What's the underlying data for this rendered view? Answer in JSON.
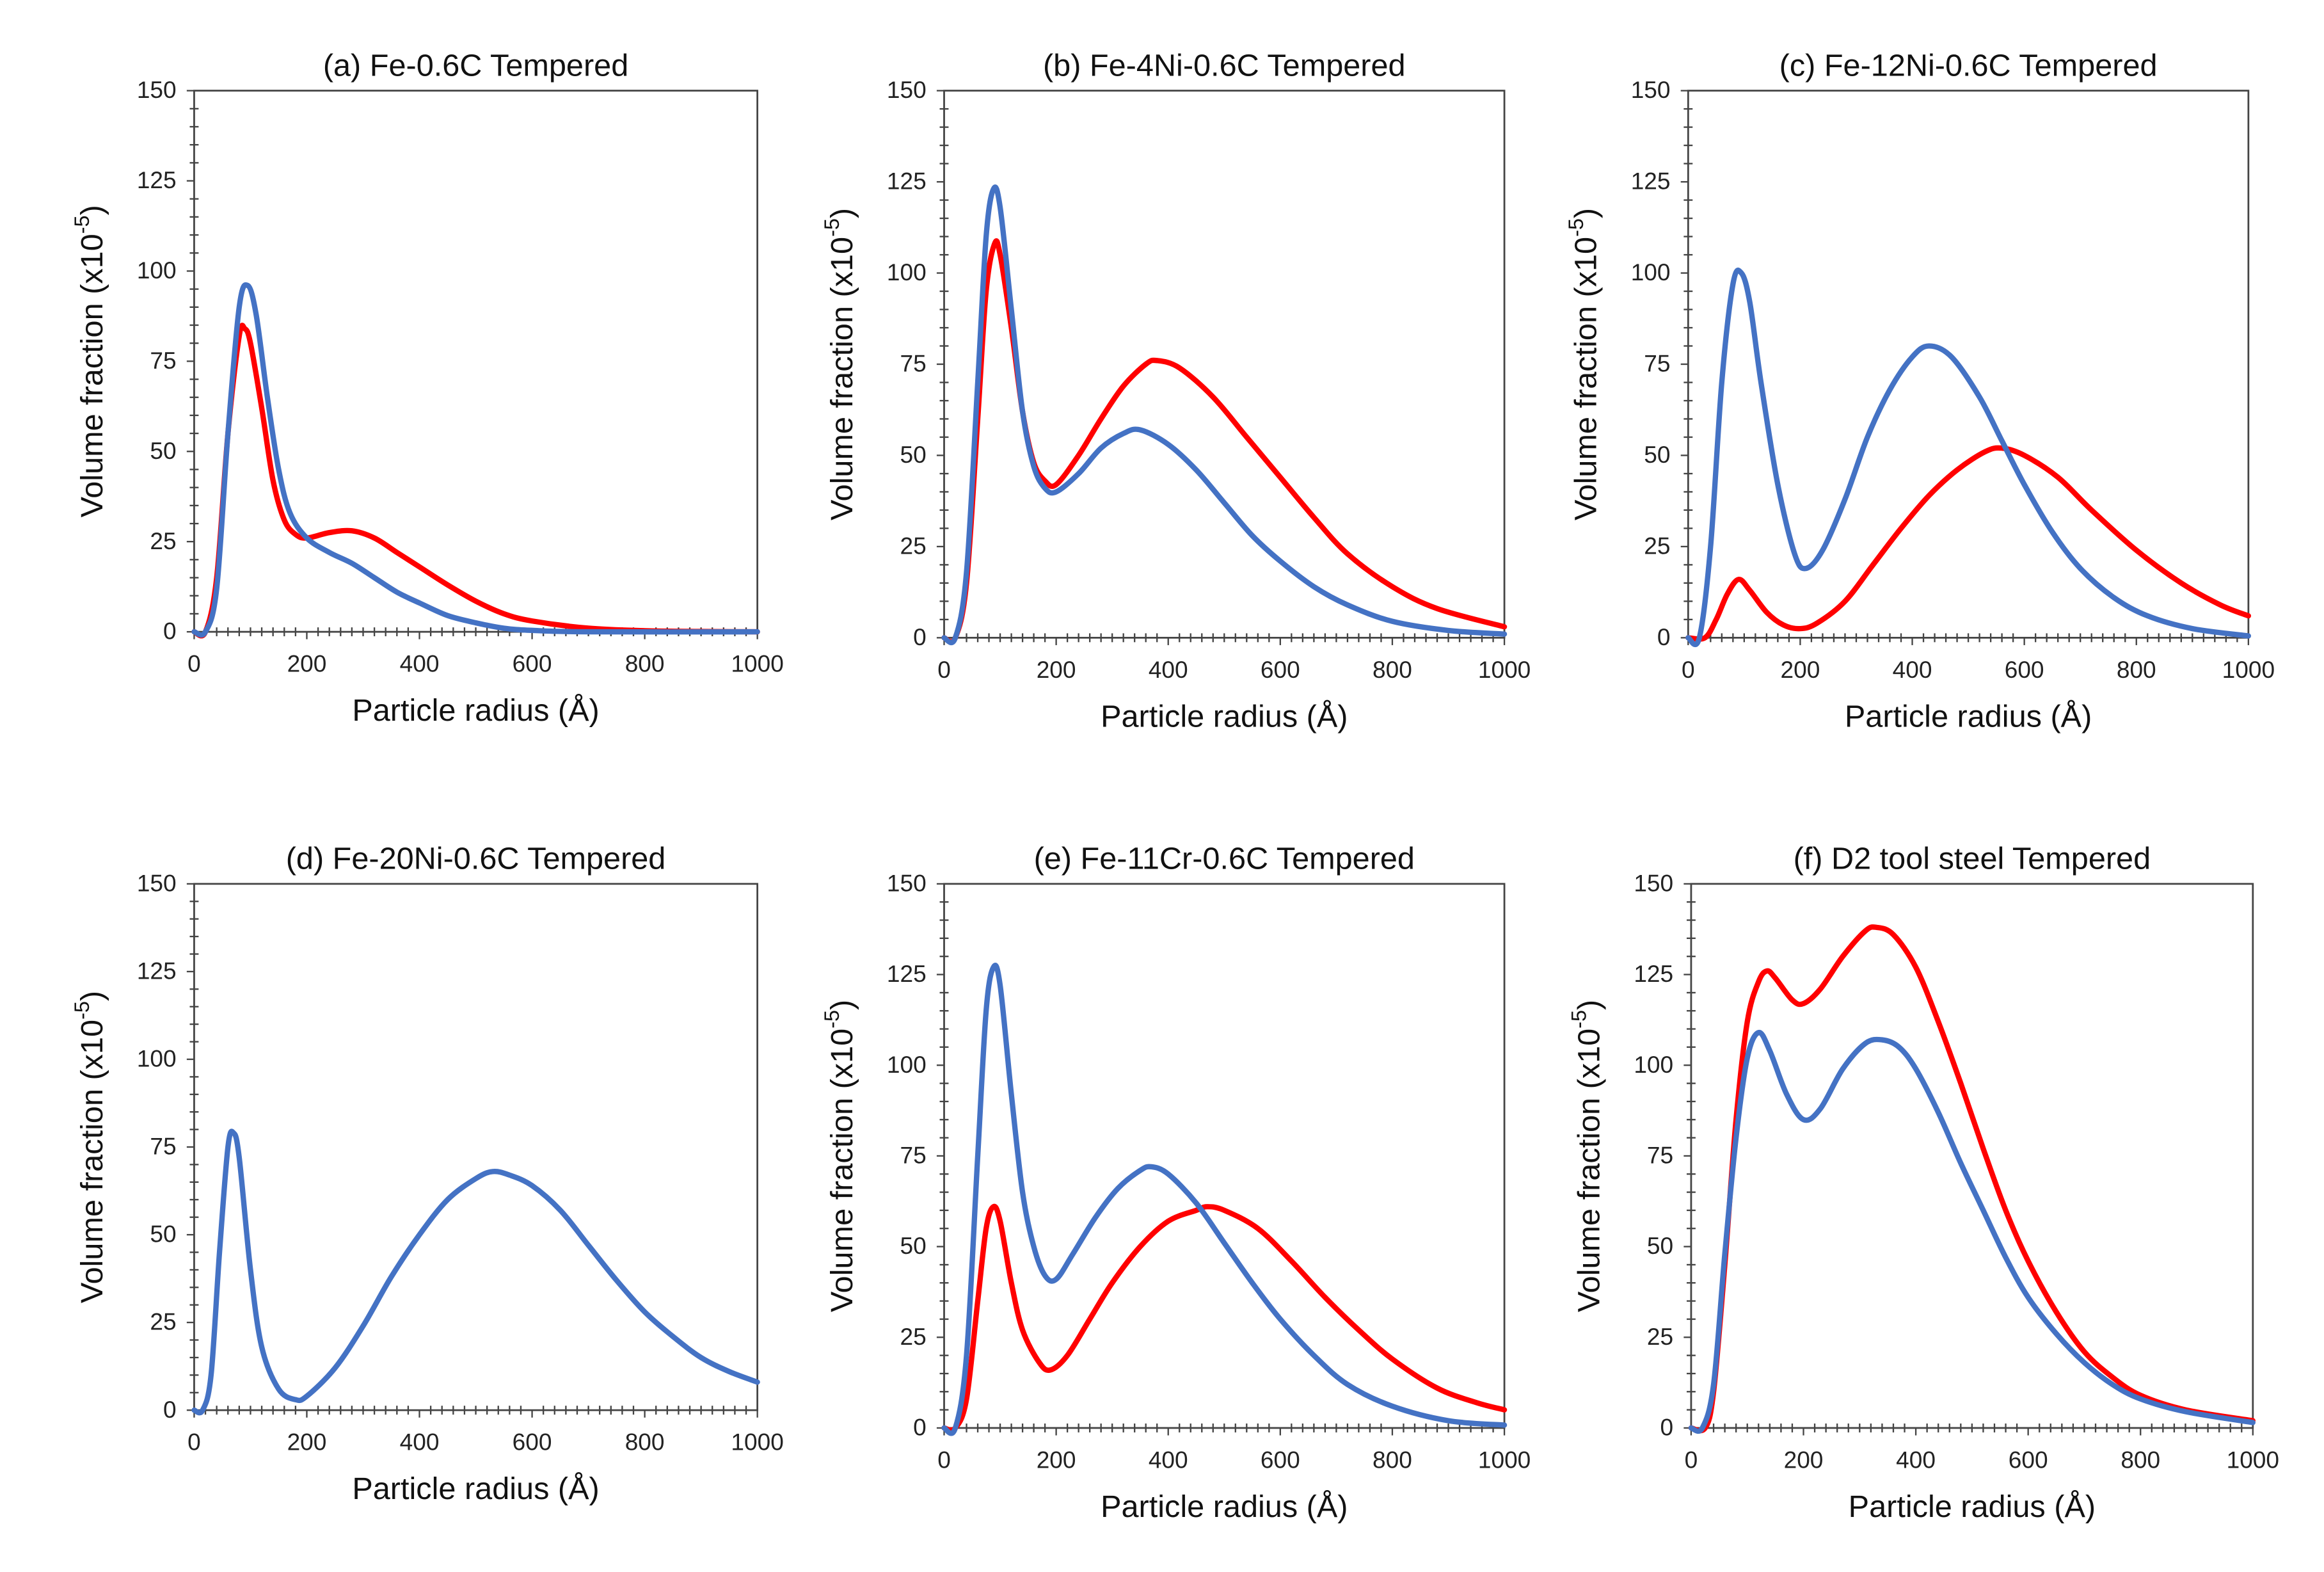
{
  "chart_data": [
    {
      "type": "line",
      "title": "(a) Fe-0.6C Tempered",
      "xlabel": "Particle radius (Å)",
      "ylabel": {
        "prefix": "Volume fraction (x10",
        "sup": "-5",
        "suffix": ")"
      },
      "xlim": [
        0,
        1000
      ],
      "ylim": [
        0,
        150
      ],
      "xticks": [
        "0",
        "200",
        "400",
        "600",
        "800",
        "1000"
      ],
      "yticks": [
        "0",
        "25",
        "50",
        "75",
        "100",
        "125",
        "150"
      ],
      "series": [
        {
          "color": "#ff0000",
          "x": [
            0,
            20,
            40,
            60,
            80,
            90,
            100,
            120,
            140,
            160,
            180,
            200,
            240,
            280,
            320,
            360,
            400,
            450,
            500,
            550,
            600,
            700,
            800,
            900,
            1000
          ],
          "y": [
            0,
            0,
            15,
            55,
            82,
            84,
            80,
            62,
            42,
            31,
            27,
            26,
            27.5,
            28,
            26,
            22,
            18,
            13,
            8.5,
            5,
            3,
            1,
            0.3,
            0.1,
            0
          ]
        },
        {
          "color": "#4472c4",
          "x": [
            0,
            20,
            40,
            60,
            80,
            95,
            110,
            130,
            150,
            170,
            200,
            240,
            280,
            320,
            360,
            400,
            450,
            500,
            550,
            600,
            700,
            1000
          ],
          "y": [
            0,
            0,
            12,
            55,
            90,
            96,
            88,
            65,
            45,
            33,
            26,
            22,
            19,
            15,
            11,
            8,
            4.5,
            2.5,
            1,
            0.4,
            0,
            0
          ]
        }
      ]
    },
    {
      "type": "line",
      "title": "(b) Fe-4Ni-0.6C Tempered",
      "xlabel": "Particle radius (Å)",
      "ylabel": {
        "prefix": "Volume fraction (x10",
        "sup": "-5",
        "suffix": ")"
      },
      "xlim": [
        0,
        1000
      ],
      "ylim": [
        0,
        150
      ],
      "xticks": [
        "0",
        "200",
        "400",
        "600",
        "800",
        "1000"
      ],
      "yticks": [
        "0",
        "25",
        "50",
        "75",
        "100",
        "125",
        "150"
      ],
      "series": [
        {
          "color": "#ff0000",
          "x": [
            0,
            20,
            40,
            60,
            75,
            90,
            100,
            120,
            140,
            160,
            180,
            200,
            240,
            280,
            320,
            360,
            380,
            420,
            480,
            540,
            600,
            660,
            720,
            800,
            880,
            1000
          ],
          "y": [
            0,
            0,
            15,
            60,
            95,
            108,
            105,
            85,
            62,
            48,
            43,
            42,
            50,
            60,
            69,
            75,
            76,
            74,
            66,
            55,
            44,
            33,
            23,
            14,
            8,
            3
          ]
        },
        {
          "color": "#4472c4",
          "x": [
            0,
            20,
            40,
            60,
            75,
            88,
            100,
            120,
            140,
            160,
            180,
            200,
            240,
            280,
            320,
            350,
            400,
            450,
            500,
            550,
            600,
            660,
            720,
            800,
            900,
            1000
          ],
          "y": [
            0,
            0,
            18,
            70,
            110,
            123,
            118,
            90,
            62,
            47,
            41,
            40,
            45,
            52,
            56,
            57,
            53,
            46,
            37,
            28,
            21,
            14,
            9,
            4.5,
            2,
            1
          ]
        }
      ]
    },
    {
      "type": "line",
      "title": "(c) Fe-12Ni-0.6C Tempered",
      "xlabel": "Particle radius (Å)",
      "ylabel": {
        "prefix": "Volume fraction (x10",
        "sup": "-5",
        "suffix": ")"
      },
      "xlim": [
        0,
        1000
      ],
      "ylim": [
        0,
        150
      ],
      "xticks": [
        "0",
        "200",
        "400",
        "600",
        "800",
        "1000"
      ],
      "yticks": [
        "0",
        "25",
        "50",
        "75",
        "100",
        "125",
        "150"
      ],
      "series": [
        {
          "color": "#ff0000",
          "x": [
            0,
            30,
            50,
            70,
            90,
            110,
            140,
            170,
            200,
            230,
            280,
            330,
            380,
            430,
            480,
            530,
            560,
            600,
            660,
            720,
            800,
            880,
            950,
            1000
          ],
          "y": [
            0,
            0,
            5,
            12,
            16,
            13,
            7,
            3.5,
            2.5,
            4,
            10,
            20,
            30,
            39,
            46,
            51,
            52,
            50,
            44,
            35,
            24,
            15,
            9,
            6
          ]
        },
        {
          "color": "#4472c4",
          "x": [
            0,
            20,
            40,
            60,
            80,
            95,
            110,
            130,
            160,
            190,
            210,
            240,
            280,
            320,
            360,
            400,
            430,
            470,
            520,
            560,
            600,
            650,
            700,
            760,
            820,
            900,
            1000
          ],
          "y": [
            0,
            0,
            25,
            70,
            97,
            100,
            92,
            70,
            42,
            23,
            19,
            24,
            38,
            55,
            68,
            77,
            80,
            77,
            66,
            54,
            42,
            29,
            19,
            11,
            6,
            2.5,
            0.5
          ]
        }
      ]
    },
    {
      "type": "line",
      "title": "(d) Fe-20Ni-0.6C Tempered",
      "xlabel": "Particle radius (Å)",
      "ylabel": {
        "prefix": "Volume fraction (x10",
        "sup": "-5",
        "suffix": ")"
      },
      "xlim": [
        0,
        1000
      ],
      "ylim": [
        0,
        150
      ],
      "xticks": [
        "0",
        "200",
        "400",
        "600",
        "800",
        "1000"
      ],
      "yticks": [
        "0",
        "25",
        "50",
        "75",
        "100",
        "125",
        "150"
      ],
      "series": [
        {
          "color": "#4472c4",
          "x": [
            0,
            15,
            30,
            45,
            60,
            70,
            80,
            100,
            120,
            150,
            180,
            200,
            250,
            300,
            350,
            400,
            450,
            500,
            530,
            560,
            600,
            650,
            700,
            750,
            800,
            850,
            900,
            950,
            1000
          ],
          "y": [
            0,
            0,
            10,
            45,
            75,
            79,
            72,
            40,
            18,
            6,
            3,
            4,
            12,
            24,
            38,
            50,
            60,
            66,
            68,
            67,
            64,
            57,
            47,
            37,
            28,
            21,
            15,
            11,
            8
          ]
        }
      ]
    },
    {
      "type": "line",
      "title": "(e) Fe-11Cr-0.6C Tempered",
      "xlabel": "Particle radius (Å)",
      "ylabel": {
        "prefix": "Volume fraction (x10",
        "sup": "-5",
        "suffix": ")"
      },
      "xlim": [
        0,
        1000
      ],
      "ylim": [
        0,
        150
      ],
      "xticks": [
        "0",
        "200",
        "400",
        "600",
        "800",
        "1000"
      ],
      "yticks": [
        "0",
        "25",
        "50",
        "75",
        "100",
        "125",
        "150"
      ],
      "series": [
        {
          "color": "#ff0000",
          "x": [
            0,
            20,
            40,
            60,
            75,
            88,
            100,
            120,
            140,
            170,
            190,
            220,
            260,
            300,
            350,
            400,
            450,
            470,
            500,
            560,
            620,
            680,
            740,
            800,
            880,
            950,
            1000
          ],
          "y": [
            0,
            0,
            8,
            35,
            55,
            61,
            57,
            40,
            27,
            18,
            16,
            20,
            30,
            40,
            50,
            57,
            60,
            61,
            60,
            55,
            46,
            36,
            27,
            19,
            11,
            7,
            5
          ]
        },
        {
          "color": "#4472c4",
          "x": [
            0,
            20,
            40,
            60,
            75,
            88,
            100,
            120,
            140,
            160,
            180,
            200,
            230,
            270,
            310,
            350,
            370,
            400,
            450,
            500,
            550,
            600,
            660,
            720,
            800,
            900,
            1000
          ],
          "y": [
            0,
            0,
            20,
            75,
            115,
            127,
            122,
            92,
            65,
            50,
            42,
            41,
            48,
            58,
            66,
            71,
            72,
            70,
            62,
            51,
            40,
            30,
            20,
            12,
            6,
            2,
            0.8
          ]
        }
      ]
    },
    {
      "type": "line",
      "title": "(f) D2 tool steel Tempered",
      "xlabel": "Particle radius (Å)",
      "ylabel": {
        "prefix": "Volume fraction (x10",
        "sup": "-5",
        "suffix": ")"
      },
      "xlim": [
        0,
        1000
      ],
      "ylim": [
        0,
        150
      ],
      "xticks": [
        "0",
        "200",
        "400",
        "600",
        "800",
        "1000"
      ],
      "yticks": [
        "0",
        "25",
        "50",
        "75",
        "100",
        "125",
        "150"
      ],
      "series": [
        {
          "color": "#ff0000",
          "x": [
            0,
            25,
            40,
            60,
            80,
            100,
            120,
            135,
            150,
            180,
            200,
            230,
            270,
            310,
            330,
            360,
            400,
            440,
            480,
            520,
            560,
            600,
            650,
            700,
            750,
            800,
            880,
            1000
          ],
          "y": [
            0,
            0,
            10,
            45,
            85,
            112,
            123,
            126,
            124,
            118,
            117,
            121,
            130,
            137,
            138,
            136,
            127,
            112,
            95,
            77,
            60,
            46,
            32,
            21,
            14,
            9,
            5,
            2
          ]
        },
        {
          "color": "#4472c4",
          "x": [
            0,
            20,
            40,
            60,
            80,
            100,
            120,
            140,
            170,
            200,
            230,
            270,
            310,
            340,
            370,
            400,
            440,
            480,
            520,
            560,
            600,
            650,
            700,
            750,
            800,
            880,
            1000
          ],
          "y": [
            0,
            0,
            12,
            48,
            80,
            102,
            109,
            104,
            92,
            85,
            88,
            99,
            106,
            107,
            105,
            99,
            87,
            73,
            60,
            47,
            36,
            26,
            18,
            12,
            8,
            4.5,
            1.5
          ]
        }
      ]
    }
  ]
}
